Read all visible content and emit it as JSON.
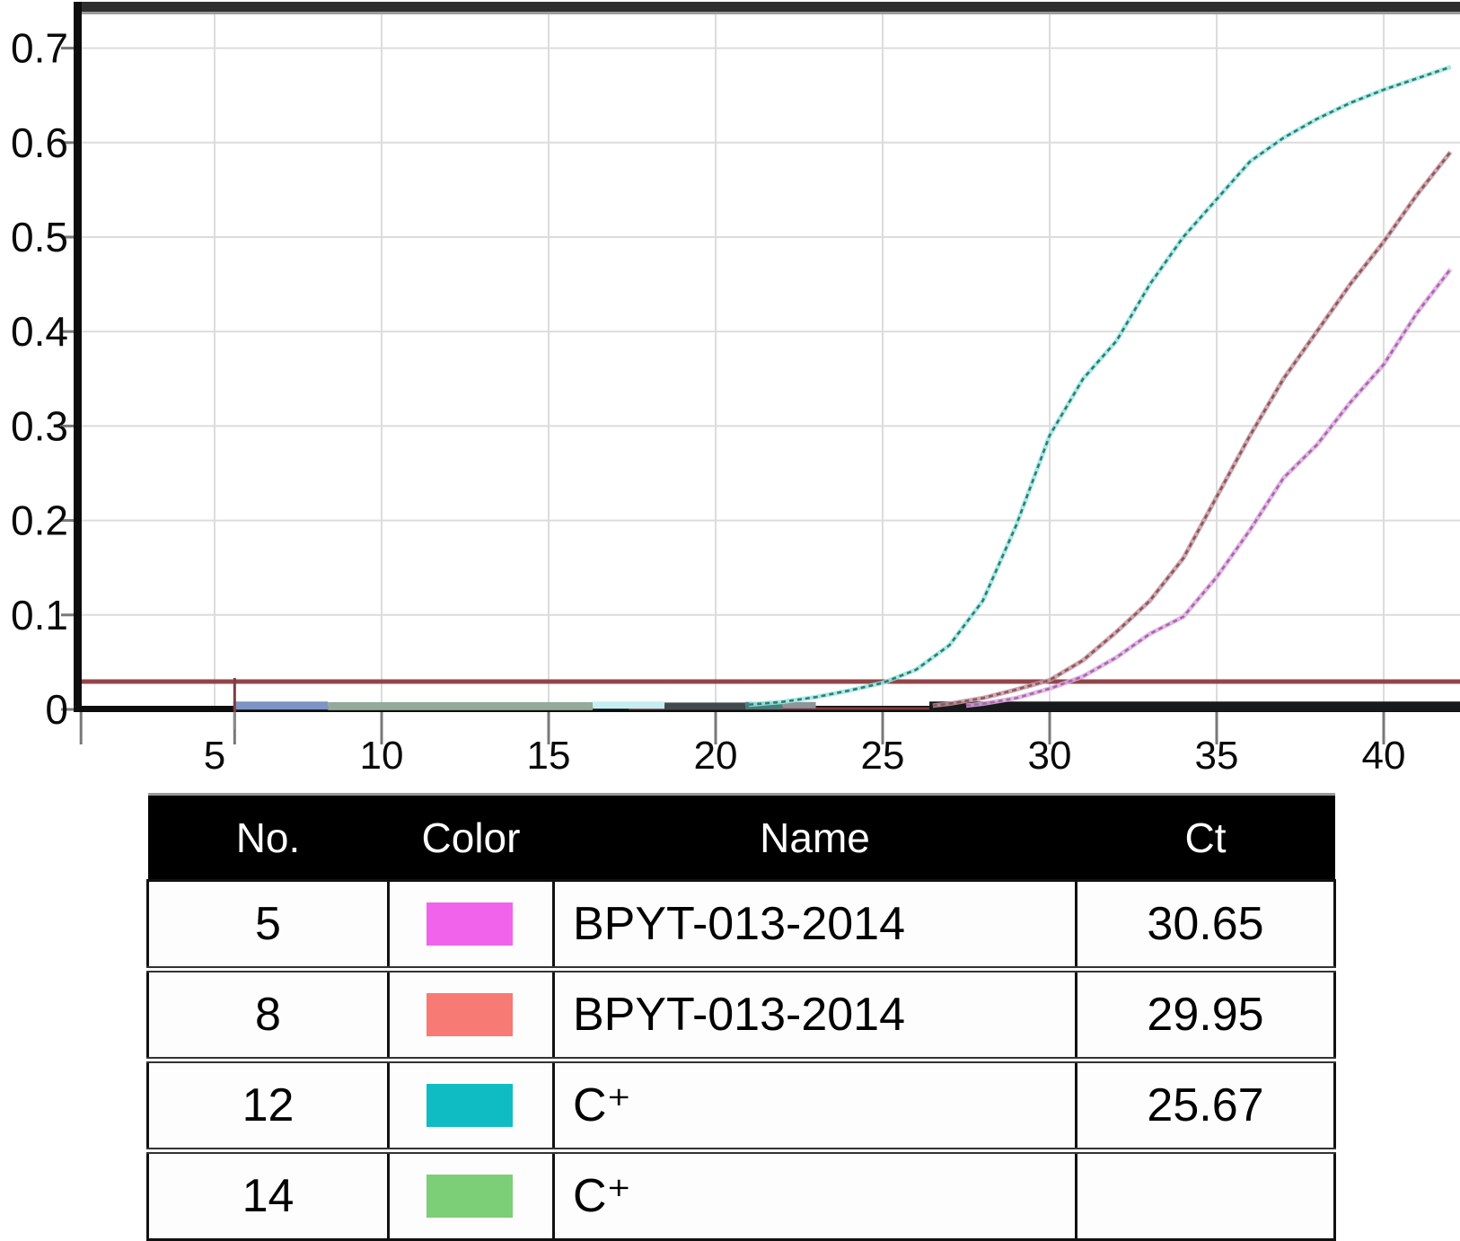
{
  "colors": {
    "grid": "#dcdcdc",
    "axis": "#0d0d0d",
    "top_bar": "#2e2e2e",
    "top_bar_edge": "#9b9b9b",
    "tick": "#787878",
    "label": "#0a0a0a",
    "threshold": "#91454a",
    "baseline_marker_red": "#7c3c44",
    "baseline_marker_gray": "#8a8a8a"
  },
  "chart_data": {
    "type": "line",
    "title": "",
    "xlabel": "",
    "ylabel": "",
    "xlim": [
      1,
      42.5
    ],
    "ylim": [
      0,
      0.74
    ],
    "grid": true,
    "legend_position": "none",
    "threshold_value": 0.0295,
    "baseline_marker_cycle": 5.6,
    "x_ticks": [
      {
        "v": 5,
        "label": "5"
      },
      {
        "v": 10,
        "label": "10"
      },
      {
        "v": 15,
        "label": "15"
      },
      {
        "v": 20,
        "label": "20"
      },
      {
        "v": 25,
        "label": "25"
      },
      {
        "v": 30,
        "label": "30"
      },
      {
        "v": 35,
        "label": "35"
      },
      {
        "v": 40,
        "label": "40"
      }
    ],
    "x_tick_marks": [
      1,
      5.6,
      10,
      15,
      20,
      25,
      30,
      35,
      40
    ],
    "y_ticks": [
      {
        "v": 0,
        "label": "0"
      },
      {
        "v": 0.1,
        "label": "0.1"
      },
      {
        "v": 0.2,
        "label": "0.2"
      },
      {
        "v": 0.3,
        "label": "0.3"
      },
      {
        "v": 0.4,
        "label": "0.4"
      },
      {
        "v": 0.5,
        "label": "0.5"
      },
      {
        "v": 0.6,
        "label": "0.6"
      },
      {
        "v": 0.7,
        "label": "0.7"
      }
    ],
    "baseline_segments": [
      {
        "from": 17.4,
        "to": 28.0,
        "v": 0.001,
        "color": "#7e3a3e",
        "width": 3
      },
      {
        "from": 5.56,
        "to": 8.39,
        "v": 0.004,
        "color": "#7d94c4",
        "width": 9
      },
      {
        "from": 8.39,
        "to": 16.32,
        "v": 0.0035,
        "color": "#93aa9c",
        "width": 9
      },
      {
        "from": 16.32,
        "to": 18.47,
        "v": 0.0045,
        "color": "#c5eef2",
        "width": 8
      },
      {
        "from": 18.47,
        "to": 20.89,
        "v": 0.0035,
        "color": "#414b4f",
        "width": 8
      },
      {
        "from": 20.89,
        "to": 22.0,
        "v": 0.004,
        "color": "#45807c",
        "width": 8
      },
      {
        "from": 22.0,
        "to": 23.0,
        "v": 0.0045,
        "color": "#8d959b",
        "width": 7
      }
    ],
    "series": [
      {
        "name": "C+ (No.14)",
        "ct": null,
        "color": "#17191b",
        "halo": null,
        "line_width": 11,
        "dashed": false,
        "points": [
          [
            26.4,
            0.003
          ],
          [
            42.5,
            0.003
          ]
        ]
      },
      {
        "name": "C+ (No.12)",
        "ct": 25.67,
        "color": "#2c7d72",
        "halo": "#9fe5e2",
        "line_width": 2.6,
        "dashed": true,
        "points": [
          [
            21,
            0.005
          ],
          [
            22,
            0.008
          ],
          [
            23,
            0.013
          ],
          [
            24,
            0.02
          ],
          [
            25,
            0.028
          ],
          [
            26,
            0.042
          ],
          [
            27,
            0.068
          ],
          [
            28,
            0.115
          ],
          [
            29,
            0.195
          ],
          [
            30,
            0.29
          ],
          [
            31,
            0.35
          ],
          [
            32,
            0.39
          ],
          [
            33,
            0.45
          ],
          [
            34,
            0.5
          ],
          [
            35,
            0.54
          ],
          [
            36,
            0.58
          ],
          [
            37,
            0.605
          ],
          [
            38,
            0.625
          ],
          [
            39,
            0.642
          ],
          [
            40,
            0.656
          ],
          [
            41,
            0.668
          ],
          [
            42,
            0.68
          ]
        ]
      },
      {
        "name": "BPYT-013-2014 (No.8)",
        "ct": 29.95,
        "color": "#8d5560",
        "halo": "#c59aa2",
        "line_width": 2.6,
        "dashed": true,
        "points": [
          [
            26.5,
            0.004
          ],
          [
            27,
            0.006
          ],
          [
            28,
            0.012
          ],
          [
            29,
            0.021
          ],
          [
            30,
            0.031
          ],
          [
            31,
            0.052
          ],
          [
            32,
            0.082
          ],
          [
            33,
            0.115
          ],
          [
            34,
            0.16
          ],
          [
            35,
            0.225
          ],
          [
            36,
            0.29
          ],
          [
            37,
            0.35
          ],
          [
            38,
            0.4
          ],
          [
            39,
            0.45
          ],
          [
            40,
            0.495
          ],
          [
            41,
            0.545
          ],
          [
            42,
            0.59
          ]
        ]
      },
      {
        "name": "BPYT-013-2014 (No.5)",
        "ct": 30.65,
        "color": "#a866ab",
        "halo": "#dcaede",
        "line_width": 2.6,
        "dashed": true,
        "points": [
          [
            27.5,
            0.004
          ],
          [
            28,
            0.006
          ],
          [
            29,
            0.012
          ],
          [
            30,
            0.022
          ],
          [
            31,
            0.035
          ],
          [
            32,
            0.055
          ],
          [
            33,
            0.08
          ],
          [
            34,
            0.098
          ],
          [
            35,
            0.14
          ],
          [
            36,
            0.19
          ],
          [
            37,
            0.245
          ],
          [
            38,
            0.28
          ],
          [
            39,
            0.325
          ],
          [
            40,
            0.365
          ],
          [
            41,
            0.42
          ],
          [
            42,
            0.466
          ]
        ]
      }
    ]
  },
  "table": {
    "headers": [
      "No.",
      "Color",
      "Name",
      "Ct"
    ],
    "rows": [
      {
        "no": "5",
        "color": "#f163ea",
        "name": "BPYT-013-2014",
        "ct": "30.65"
      },
      {
        "no": "8",
        "color": "#f87a74",
        "name": "BPYT-013-2014",
        "ct": "29.95"
      },
      {
        "no": "12",
        "color": "#10bcc4",
        "name": "C⁺",
        "ct": "25.67"
      },
      {
        "no": "14",
        "color": "#7ccf77",
        "name": "C⁺",
        "ct": ""
      }
    ]
  }
}
